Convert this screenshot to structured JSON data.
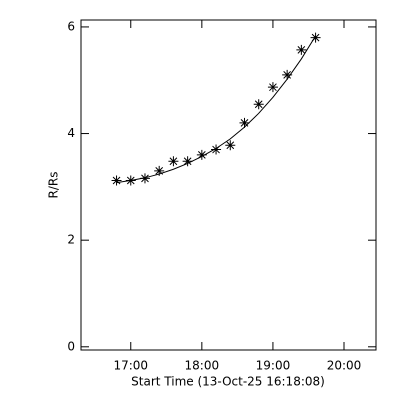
{
  "chart_data": {
    "type": "scatter",
    "xlabel": "Start Time (13-Oct-25 16:18:08)",
    "ylabel": "R/Rs",
    "x": [
      16.8,
      17.0,
      17.2,
      17.4,
      17.6,
      17.8,
      18.0,
      18.2,
      18.4,
      18.6,
      18.8,
      19.0,
      19.2,
      19.4,
      19.6
    ],
    "values": [
      3.12,
      3.12,
      3.16,
      3.3,
      3.48,
      3.48,
      3.6,
      3.7,
      3.78,
      4.2,
      4.55,
      4.87,
      5.1,
      5.57,
      5.8
    ],
    "fit_values": [
      3.08,
      3.12,
      3.17,
      3.24,
      3.33,
      3.44,
      3.57,
      3.72,
      3.9,
      4.12,
      4.38,
      4.68,
      5.02,
      5.4,
      5.83
    ],
    "color": "#000000",
    "xlim": [
      16.3,
      20.45
    ],
    "ylim": [
      -0.06,
      6.13
    ],
    "xticks": [
      {
        "value": 17,
        "label": "17:00"
      },
      {
        "value": 18,
        "label": "18:00"
      },
      {
        "value": 19,
        "label": "19:00"
      },
      {
        "value": 20,
        "label": "20:00"
      }
    ],
    "yticks": [
      0,
      2,
      4,
      6
    ]
  }
}
